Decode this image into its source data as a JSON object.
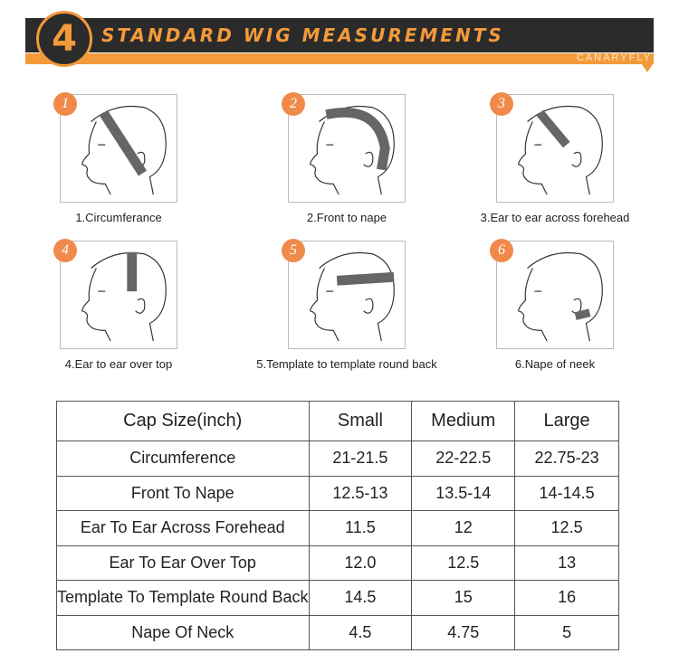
{
  "header": {
    "number": "4",
    "title": "STANDARD WIG MEASUREMENTS",
    "brand": "CANARYFLY"
  },
  "colors": {
    "accent": "#f39a3a",
    "dark": "#2b2b2b",
    "badge": "#f08a4b"
  },
  "steps": [
    {
      "num": "1",
      "label": "1.Circumferance"
    },
    {
      "num": "2",
      "label": "2.Front to nape"
    },
    {
      "num": "3",
      "label": "3.Ear to ear across forehead"
    },
    {
      "num": "4",
      "label": "4.Ear to ear over top"
    },
    {
      "num": "5",
      "label": "5.Template to template round back"
    },
    {
      "num": "6",
      "label": "6.Nape of neek"
    }
  ],
  "table": {
    "headers": [
      "Cap Size(inch)",
      "Small",
      "Medium",
      "Large"
    ],
    "rows": [
      [
        "Circumference",
        "21-21.5",
        "22-22.5",
        "22.75-23"
      ],
      [
        "Front To Nape",
        "12.5-13",
        "13.5-14",
        "14-14.5"
      ],
      [
        "Ear To Ear Across Forehead",
        "11.5",
        "12",
        "12.5"
      ],
      [
        "Ear To Ear Over Top",
        "12.0",
        "12.5",
        "13"
      ],
      [
        "Template To Template Round Back",
        "14.5",
        "15",
        "16"
      ],
      [
        "Nape Of Neck",
        "4.5",
        "4.75",
        "5"
      ]
    ]
  }
}
